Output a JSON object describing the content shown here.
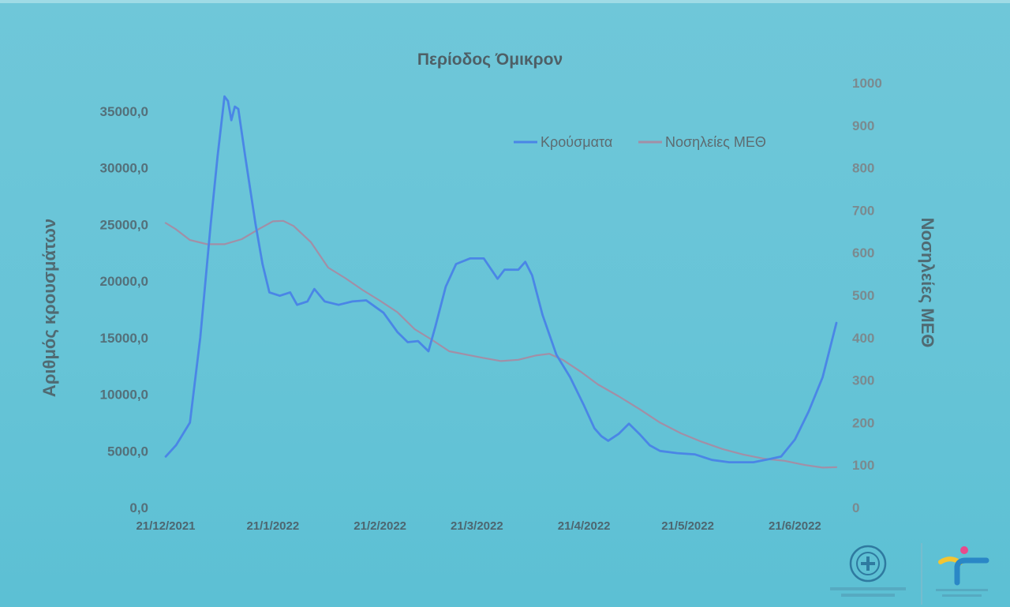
{
  "chart_data": {
    "type": "line",
    "title": "Περίοδος Όμικρον",
    "ylabel_left": "Αριθμός κρουσμάτων",
    "ylabel_right": "Νοσηλείες ΜΕΘ",
    "ylim_left": [
      0,
      37500
    ],
    "ylim_right": [
      0,
      1000
    ],
    "y_ticks_left": [
      "0,0",
      "5000,0",
      "10000,0",
      "15000,0",
      "20000,0",
      "25000,0",
      "30000,0",
      "35000,0"
    ],
    "y_ticks_right": [
      "0",
      "100",
      "200",
      "300",
      "400",
      "500",
      "600",
      "700",
      "800",
      "900",
      "1000"
    ],
    "x_tick_labels": [
      "21/12/2021",
      "21/1/2022",
      "21/2/2022",
      "21/3/2022",
      "21/4/2022",
      "21/5/2022",
      "21/6/2022"
    ],
    "x_range": [
      "2021-12-21",
      "2022-07-03"
    ],
    "grid": false,
    "legend_position": "top-right",
    "series": [
      {
        "name": "Κρούσματα",
        "axis": "left",
        "color": "#4a86e6",
        "points": [
          [
            "2021-12-21",
            4500
          ],
          [
            "2021-12-24",
            5500
          ],
          [
            "2021-12-28",
            7500
          ],
          [
            "2021-12-31",
            15000
          ],
          [
            "2022-01-03",
            25000
          ],
          [
            "2022-01-05",
            31000
          ],
          [
            "2022-01-07",
            36300
          ],
          [
            "2022-01-08",
            35900
          ],
          [
            "2022-01-09",
            34200
          ],
          [
            "2022-01-10",
            35400
          ],
          [
            "2022-01-11",
            35200
          ],
          [
            "2022-01-13",
            31000
          ],
          [
            "2022-01-16",
            25000
          ],
          [
            "2022-01-18",
            21500
          ],
          [
            "2022-01-20",
            19000
          ],
          [
            "2022-01-23",
            18700
          ],
          [
            "2022-01-26",
            19000
          ],
          [
            "2022-01-28",
            17900
          ],
          [
            "2022-01-31",
            18200
          ],
          [
            "2022-02-02",
            19300
          ],
          [
            "2022-02-05",
            18200
          ],
          [
            "2022-02-09",
            17900
          ],
          [
            "2022-02-13",
            18200
          ],
          [
            "2022-02-17",
            18300
          ],
          [
            "2022-02-22",
            17200
          ],
          [
            "2022-02-26",
            15500
          ],
          [
            "2022-03-01",
            14600
          ],
          [
            "2022-03-04",
            14700
          ],
          [
            "2022-03-07",
            13800
          ],
          [
            "2022-03-09",
            16000
          ],
          [
            "2022-03-12",
            19500
          ],
          [
            "2022-03-15",
            21500
          ],
          [
            "2022-03-19",
            22000
          ],
          [
            "2022-03-23",
            22000
          ],
          [
            "2022-03-27",
            20200
          ],
          [
            "2022-03-29",
            21000
          ],
          [
            "2022-04-02",
            21000
          ],
          [
            "2022-04-04",
            21700
          ],
          [
            "2022-04-06",
            20500
          ],
          [
            "2022-04-09",
            17000
          ],
          [
            "2022-04-13",
            13500
          ],
          [
            "2022-04-17",
            11500
          ],
          [
            "2022-04-21",
            9000
          ],
          [
            "2022-04-24",
            7000
          ],
          [
            "2022-04-26",
            6300
          ],
          [
            "2022-04-28",
            5900
          ],
          [
            "2022-05-01",
            6500
          ],
          [
            "2022-05-04",
            7400
          ],
          [
            "2022-05-07",
            6500
          ],
          [
            "2022-05-10",
            5500
          ],
          [
            "2022-05-13",
            5000
          ],
          [
            "2022-05-18",
            4800
          ],
          [
            "2022-05-23",
            4700
          ],
          [
            "2022-05-28",
            4200
          ],
          [
            "2022-06-02",
            4000
          ],
          [
            "2022-06-09",
            4000
          ],
          [
            "2022-06-14",
            4300
          ],
          [
            "2022-06-17",
            4500
          ],
          [
            "2022-06-21",
            6000
          ],
          [
            "2022-06-25",
            8500
          ],
          [
            "2022-06-29",
            11500
          ],
          [
            "2022-07-03",
            16300
          ]
        ]
      },
      {
        "name": "Νοσηλείες ΜΕΘ",
        "axis": "right",
        "color": "#a28fa6",
        "points": [
          [
            "2021-12-21",
            670
          ],
          [
            "2021-12-24",
            655
          ],
          [
            "2021-12-28",
            630
          ],
          [
            "2022-01-02",
            620
          ],
          [
            "2022-01-07",
            620
          ],
          [
            "2022-01-12",
            632
          ],
          [
            "2022-01-17",
            656
          ],
          [
            "2022-01-21",
            674
          ],
          [
            "2022-01-24",
            675
          ],
          [
            "2022-01-27",
            663
          ],
          [
            "2022-02-01",
            625
          ],
          [
            "2022-02-06",
            565
          ],
          [
            "2022-02-11",
            540
          ],
          [
            "2022-02-16",
            512
          ],
          [
            "2022-02-21",
            487
          ],
          [
            "2022-02-26",
            460
          ],
          [
            "2022-03-03",
            420
          ],
          [
            "2022-03-08",
            395
          ],
          [
            "2022-03-13",
            368
          ],
          [
            "2022-03-18",
            360
          ],
          [
            "2022-03-23",
            352
          ],
          [
            "2022-03-28",
            345
          ],
          [
            "2022-04-02",
            348
          ],
          [
            "2022-04-07",
            358
          ],
          [
            "2022-04-11",
            362
          ],
          [
            "2022-04-15",
            347
          ],
          [
            "2022-04-20",
            320
          ],
          [
            "2022-04-25",
            290
          ],
          [
            "2022-05-01",
            262
          ],
          [
            "2022-05-07",
            232
          ],
          [
            "2022-05-13",
            200
          ],
          [
            "2022-05-19",
            175
          ],
          [
            "2022-05-25",
            155
          ],
          [
            "2022-05-31",
            138
          ],
          [
            "2022-06-06",
            125
          ],
          [
            "2022-06-12",
            115
          ],
          [
            "2022-06-18",
            110
          ],
          [
            "2022-06-24",
            100
          ],
          [
            "2022-06-29",
            94
          ],
          [
            "2022-07-03",
            95
          ]
        ]
      }
    ]
  }
}
